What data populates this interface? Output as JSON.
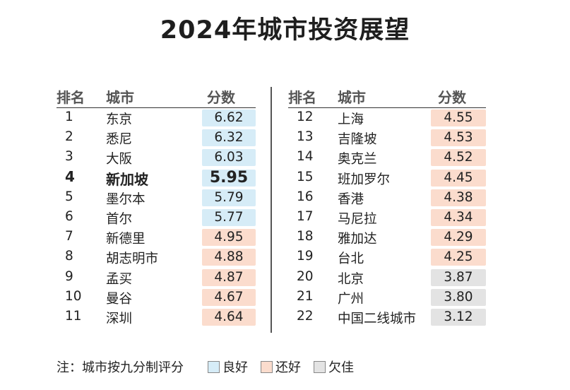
{
  "chart_data": {
    "type": "table",
    "title": "2024年城市投资展望",
    "columns": [
      "排名",
      "城市",
      "分数"
    ],
    "rows": [
      {
        "rank": "1",
        "city": "东京",
        "score": 6.62,
        "rating": "良好"
      },
      {
        "rank": "2",
        "city": "悉尼",
        "score": 6.32,
        "rating": "良好"
      },
      {
        "rank": "3",
        "city": "大阪",
        "score": 6.03,
        "rating": "良好"
      },
      {
        "rank": "4",
        "city": "新加坡",
        "score": 5.95,
        "rating": "良好",
        "highlight": true
      },
      {
        "rank": "5",
        "city": "墨尔本",
        "score": 5.79,
        "rating": "良好"
      },
      {
        "rank": "6",
        "city": "首尔",
        "score": 5.77,
        "rating": "良好"
      },
      {
        "rank": "7",
        "city": "新德里",
        "score": 4.95,
        "rating": "还好"
      },
      {
        "rank": "8",
        "city": "胡志明市",
        "score": 4.88,
        "rating": "还好"
      },
      {
        "rank": "9",
        "city": "孟买",
        "score": 4.87,
        "rating": "还好"
      },
      {
        "rank": "10",
        "city": "曼谷",
        "score": 4.67,
        "rating": "还好"
      },
      {
        "rank": "11",
        "city": "深圳",
        "score": 4.64,
        "rating": "还好"
      },
      {
        "rank": "12",
        "city": "上海",
        "score": 4.55,
        "rating": "还好"
      },
      {
        "rank": "13",
        "city": "吉隆坡",
        "score": 4.53,
        "rating": "还好"
      },
      {
        "rank": "14",
        "city": "奥克兰",
        "score": 4.52,
        "rating": "还好"
      },
      {
        "rank": "15",
        "city": "班加罗尔",
        "score": 4.45,
        "rating": "还好"
      },
      {
        "rank": "16",
        "city": "香港",
        "score": 4.38,
        "rating": "还好"
      },
      {
        "rank": "17",
        "city": "马尼拉",
        "score": 4.34,
        "rating": "还好"
      },
      {
        "rank": "18",
        "city": "雅加达",
        "score": 4.29,
        "rating": "还好"
      },
      {
        "rank": "19",
        "city": "台北",
        "score": 4.25,
        "rating": "还好"
      },
      {
        "rank": "20",
        "city": "北京",
        "score": 3.87,
        "rating": "欠佳"
      },
      {
        "rank": "21",
        "city": "广州",
        "score": 3.8,
        "rating": "欠佳"
      },
      {
        "rank": "22",
        "city": "中国二线城市",
        "score": 3.12,
        "rating": "欠佳"
      }
    ],
    "legend": [
      {
        "label": "良好",
        "color": "#d6ecf7"
      },
      {
        "label": "还好",
        "color": "#fbdccd"
      },
      {
        "label": "欠佳",
        "color": "#e3e3e3"
      }
    ],
    "note": "注：城市按九分制评分"
  }
}
